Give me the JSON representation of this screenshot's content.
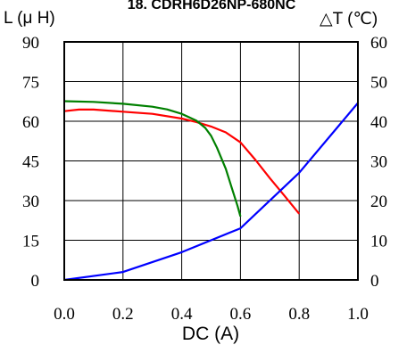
{
  "chart_data": {
    "type": "line",
    "title": "18. CDRH6D26NP-680NC",
    "xlabel": "DC (A)",
    "ylabel_left": "L (μ H)",
    "ylabel_right": "△T (℃)",
    "xlim": [
      0,
      1.0
    ],
    "ylim_left": [
      0,
      90
    ],
    "ylim_right": [
      0,
      60
    ],
    "x_ticks": [
      "0.0",
      "0.2",
      "0.4",
      "0.6",
      "0.8",
      "1.0"
    ],
    "y_ticks_left": [
      "0",
      "15",
      "30",
      "45",
      "60",
      "75",
      "90"
    ],
    "y_ticks_right": [
      "0",
      "10",
      "20",
      "30",
      "40",
      "50",
      "60"
    ],
    "grid": true,
    "series": [
      {
        "color": "#ff0000",
        "axis": "left",
        "x": [
          0.0,
          0.05,
          0.1,
          0.2,
          0.3,
          0.4,
          0.45,
          0.5,
          0.55,
          0.6,
          0.65,
          0.7,
          0.75,
          0.8
        ],
        "y": [
          63.8,
          64.4,
          64.4,
          63.6,
          62.8,
          61.0,
          59.7,
          58.0,
          55.8,
          52.0,
          45.5,
          38.5,
          31.8,
          25.0
        ]
      },
      {
        "color": "#008000",
        "axis": "left",
        "x": [
          0.0,
          0.1,
          0.2,
          0.3,
          0.35,
          0.4,
          0.45,
          0.48,
          0.5,
          0.52,
          0.55,
          0.57,
          0.59,
          0.6
        ],
        "y": [
          67.6,
          67.3,
          66.6,
          65.5,
          64.5,
          62.8,
          60.2,
          57.5,
          54.5,
          50.0,
          42.0,
          35.0,
          28.0,
          24.0
        ]
      },
      {
        "color": "#0000ff",
        "axis": "right",
        "x": [
          0.0,
          0.2,
          0.4,
          0.6,
          0.8,
          1.0
        ],
        "y": [
          0.0,
          2.0,
          7.0,
          13.0,
          27.0,
          44.6
        ]
      }
    ]
  }
}
